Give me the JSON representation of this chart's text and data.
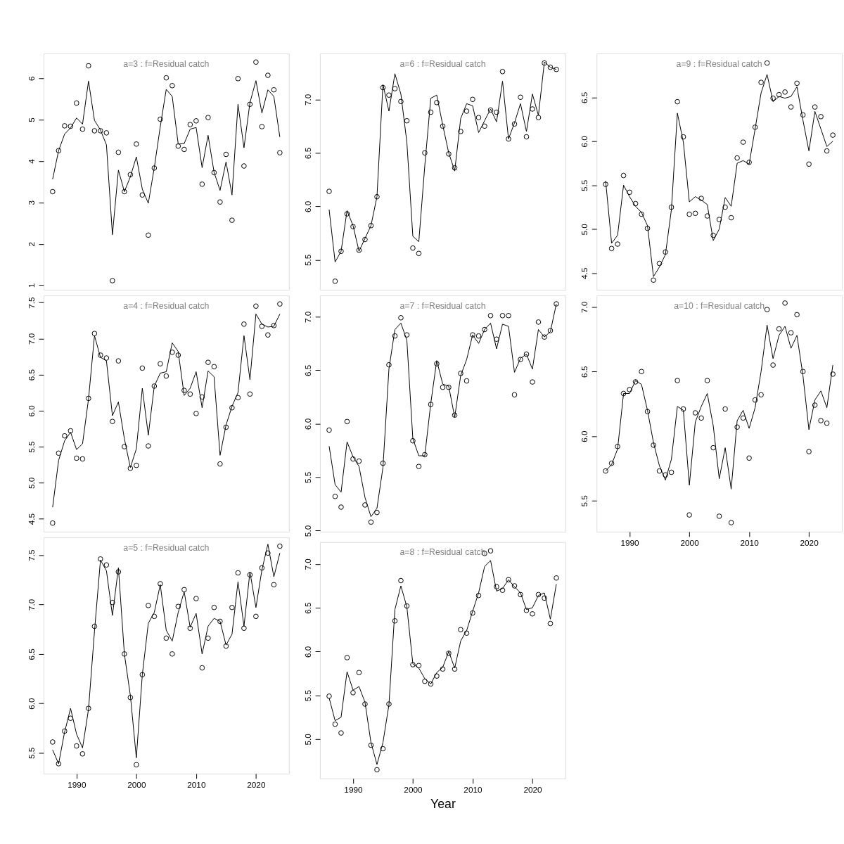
{
  "chart_data": [
    {
      "type": "line",
      "title": "a=3  :  f=Residual catch",
      "tick_labels": "y",
      "xlim": [
        1984.48,
        2025.52
      ],
      "xticks": [
        1990,
        2000,
        2010,
        2020
      ],
      "ylim": [
        0.89,
        6.6
      ],
      "yticks": [
        1,
        2,
        3,
        4,
        5,
        6
      ],
      "x": [
        1986,
        1987,
        1988,
        1989,
        1990,
        1991,
        1992,
        1993,
        1994,
        1995,
        1996,
        1997,
        1998,
        1999,
        2000,
        2001,
        2002,
        2003,
        2004,
        2005,
        2006,
        2007,
        2008,
        2009,
        2010,
        2011,
        2012,
        2013,
        2014,
        2015,
        2016,
        2017,
        2018,
        2019,
        2020,
        2021,
        2022,
        2023,
        2024
      ],
      "series": [
        {
          "type": "scatter",
          "marker": "circle",
          "color": "#000000",
          "values": [
            3.26,
            4.25,
            4.85,
            4.84,
            5.4,
            4.77,
            6.3,
            4.73,
            4.73,
            4.68,
            1.11,
            4.21,
            3.26,
            3.67,
            4.41,
            3.18,
            2.21,
            3.83,
            5.01,
            6.01,
            5.82,
            4.36,
            4.28,
            4.88,
            4.97,
            3.44,
            5.05,
            3.72,
            3.01,
            4.16,
            2.57,
            5.99,
            3.88,
            5.37,
            6.39,
            4.83,
            6.07,
            5.72,
            4.2
          ]
        },
        {
          "type": "line",
          "color": "#000000",
          "values": [
            3.56,
            4.25,
            4.65,
            4.8,
            5.04,
            4.89,
            5.93,
            4.98,
            4.75,
            4.39,
            2.22,
            3.78,
            3.26,
            3.62,
            4.1,
            3.32,
            2.98,
            3.84,
            4.83,
            5.73,
            5.56,
            4.41,
            4.42,
            4.77,
            4.81,
            3.84,
            4.62,
            3.73,
            3.29,
            3.98,
            3.18,
            5.37,
            4.32,
            5.41,
            5.94,
            5.16,
            5.72,
            5.56,
            4.58
          ]
        }
      ]
    },
    {
      "type": "line",
      "title": "a=4  :  f=Residual catch",
      "tick_labels": "y",
      "xlim": [
        1984.48,
        2025.52
      ],
      "xticks": [
        1990,
        2000,
        2010,
        2020
      ],
      "ylim": [
        4.32,
        7.6
      ],
      "yticks": [
        {
          "value": 4.5,
          "label": "4.5"
        },
        {
          "value": 5,
          "label": "5.0"
        },
        {
          "value": 5.5,
          "label": "5.5"
        },
        {
          "value": 6,
          "label": "6.0"
        },
        {
          "value": 6.5,
          "label": "6.5"
        },
        {
          "value": 7,
          "label": "7.0"
        },
        {
          "value": 7.5,
          "label": "7.5"
        }
      ],
      "x": [
        1986,
        1987,
        1988,
        1989,
        1990,
        1991,
        1992,
        1993,
        1994,
        1995,
        1996,
        1997,
        1998,
        1999,
        2000,
        2001,
        2002,
        2003,
        2004,
        2005,
        2006,
        2007,
        2008,
        2009,
        2010,
        2011,
        2012,
        2013,
        2014,
        2015,
        2016,
        2017,
        2018,
        2019,
        2020,
        2021,
        2022,
        2023,
        2024
      ],
      "series": [
        {
          "type": "scatter",
          "marker": "circle",
          "color": "#000000",
          "values": [
            4.44,
            5.41,
            5.65,
            5.72,
            5.34,
            5.33,
            6.17,
            7.07,
            6.77,
            6.73,
            5.85,
            6.69,
            5.5,
            5.2,
            5.24,
            6.59,
            5.51,
            6.34,
            6.65,
            6.48,
            6.81,
            6.77,
            6.28,
            6.23,
            5.96,
            6.19,
            6.67,
            6.61,
            5.26,
            5.77,
            6.04,
            6.18,
            7.2,
            6.23,
            7.45,
            7.17,
            7.05,
            7.18,
            7.48
          ]
        },
        {
          "type": "line",
          "color": "#000000",
          "values": [
            4.66,
            5.31,
            5.58,
            5.7,
            5.46,
            5.54,
            6.16,
            7.04,
            6.74,
            6.69,
            5.93,
            6.12,
            5.61,
            5.21,
            5.47,
            6.31,
            5.66,
            6.34,
            6.52,
            6.54,
            6.94,
            6.82,
            6.21,
            6.31,
            6.54,
            6.04,
            6.55,
            6.47,
            5.38,
            5.8,
            6.06,
            6.25,
            7.04,
            6.43,
            7.34,
            7.2,
            7.16,
            7.17,
            7.34
          ]
        }
      ]
    },
    {
      "type": "line",
      "title": "a=5  :  f=Residual catch",
      "xlim": [
        1984.48,
        2025.52
      ],
      "xticks": [
        1990,
        2000,
        2010,
        2020
      ],
      "ylim": [
        5.29,
        7.68
      ],
      "yticks": [
        {
          "value": 5.5,
          "label": "5.5"
        },
        {
          "value": 6,
          "label": "6.0"
        },
        {
          "value": 6.5,
          "label": "6.5"
        },
        {
          "value": 7,
          "label": "7.0"
        },
        {
          "value": 7.5,
          "label": "7.5"
        }
      ],
      "x": [
        1986,
        1987,
        1988,
        1989,
        1990,
        1991,
        1992,
        1993,
        1994,
        1995,
        1996,
        1997,
        1998,
        1999,
        2000,
        2001,
        2002,
        2003,
        2004,
        2005,
        2006,
        2007,
        2008,
        2009,
        2010,
        2011,
        2012,
        2013,
        2014,
        2015,
        2016,
        2017,
        2018,
        2019,
        2020,
        2021,
        2022,
        2023,
        2024
      ],
      "series": [
        {
          "type": "scatter",
          "marker": "circle",
          "color": "#000000",
          "values": [
            5.61,
            5.39,
            5.72,
            5.85,
            5.57,
            5.49,
            5.95,
            6.78,
            7.46,
            7.4,
            7.02,
            7.33,
            6.5,
            6.06,
            5.38,
            6.29,
            6.99,
            6.88,
            7.21,
            6.66,
            6.5,
            6.98,
            7.15,
            6.76,
            7.06,
            6.36,
            6.66,
            6.97,
            6.83,
            6.58,
            6.97,
            7.32,
            6.76,
            7.3,
            6.88,
            7.37,
            7.52,
            7.2,
            7.59
          ]
        },
        {
          "type": "line",
          "color": "#000000",
          "values": [
            5.53,
            5.39,
            5.71,
            5.95,
            5.69,
            5.55,
            5.94,
            6.73,
            7.45,
            7.34,
            6.89,
            7.37,
            6.5,
            6.08,
            5.45,
            6.29,
            6.81,
            6.92,
            7.2,
            6.74,
            6.63,
            6.92,
            7.13,
            6.77,
            6.91,
            6.5,
            6.78,
            6.86,
            6.83,
            6.59,
            6.7,
            7.23,
            6.78,
            7.33,
            6.97,
            7.35,
            7.61,
            7.28,
            7.52
          ]
        }
      ]
    },
    {
      "type": "line",
      "title": "a=6  :  f=Residual catch",
      "tick_labels": "y",
      "xlim": [
        1984.48,
        2025.52
      ],
      "xticks": [
        1990,
        2000,
        2010,
        2020
      ],
      "ylim": [
        5.22,
        7.43
      ],
      "yticks": [
        {
          "value": 5.5,
          "label": "5.5"
        },
        {
          "value": 6,
          "label": "6.0"
        },
        {
          "value": 6.5,
          "label": "6.5"
        },
        {
          "value": 7,
          "label": "7.0"
        }
      ],
      "x": [
        1986,
        1987,
        1988,
        1989,
        1990,
        1991,
        1992,
        1993,
        1994,
        1995,
        1996,
        1997,
        1998,
        1999,
        2000,
        2001,
        2002,
        2003,
        2004,
        2005,
        2006,
        2007,
        2008,
        2009,
        2010,
        2011,
        2012,
        2013,
        2014,
        2015,
        2016,
        2017,
        2018,
        2019,
        2020,
        2021,
        2022,
        2023,
        2024
      ],
      "series": [
        {
          "type": "scatter",
          "marker": "circle",
          "color": "#000000",
          "values": [
            6.14,
            5.3,
            5.58,
            5.93,
            5.81,
            5.59,
            5.69,
            5.82,
            6.09,
            7.11,
            7.04,
            7.1,
            6.98,
            6.8,
            5.61,
            5.56,
            6.5,
            6.88,
            6.97,
            6.75,
            6.49,
            6.36,
            6.7,
            6.89,
            7.0,
            6.83,
            6.75,
            6.9,
            6.88,
            7.26,
            6.63,
            6.77,
            7.02,
            6.65,
            6.91,
            6.83,
            7.34,
            7.3,
            7.28
          ]
        },
        {
          "type": "line",
          "color": "#000000",
          "values": [
            5.97,
            5.48,
            5.58,
            5.96,
            5.82,
            5.58,
            5.7,
            5.82,
            6.09,
            7.14,
            6.89,
            7.24,
            7.05,
            6.6,
            5.72,
            5.67,
            6.38,
            7.01,
            7.04,
            6.76,
            6.5,
            6.33,
            6.82,
            6.96,
            6.94,
            6.69,
            6.8,
            6.91,
            6.79,
            7.17,
            6.63,
            6.78,
            6.96,
            6.7,
            7.05,
            6.85,
            7.35,
            7.3,
            7.28
          ]
        }
      ]
    },
    {
      "type": "line",
      "title": "a=7  :  f=Residual catch",
      "tick_labels": "y",
      "xlim": [
        1984.48,
        2025.52
      ],
      "xticks": [
        1990,
        2000,
        2010,
        2020
      ],
      "ylim": [
        4.99,
        7.2
      ],
      "yticks": [
        {
          "value": 5,
          "label": "5.0"
        },
        {
          "value": 5.5,
          "label": "5.5"
        },
        {
          "value": 6,
          "label": "6.0"
        },
        {
          "value": 6.5,
          "label": "6.5"
        },
        {
          "value": 7,
          "label": "7.0"
        }
      ],
      "x": [
        1986,
        1987,
        1988,
        1989,
        1990,
        1991,
        1992,
        1993,
        1994,
        1995,
        1996,
        1997,
        1998,
        1999,
        2000,
        2001,
        2002,
        2003,
        2004,
        2005,
        2006,
        2007,
        2008,
        2009,
        2010,
        2011,
        2012,
        2013,
        2014,
        2015,
        2016,
        2017,
        2018,
        2019,
        2020,
        2021,
        2022,
        2023,
        2024
      ],
      "series": [
        {
          "type": "scatter",
          "marker": "circle",
          "color": "#000000",
          "values": [
            5.94,
            5.32,
            5.22,
            6.02,
            5.67,
            5.65,
            5.24,
            5.08,
            5.17,
            5.63,
            6.55,
            6.82,
            6.99,
            6.83,
            5.84,
            5.6,
            5.71,
            6.18,
            6.56,
            6.34,
            6.34,
            6.08,
            6.47,
            6.4,
            6.83,
            6.82,
            6.88,
            7.01,
            6.79,
            7.01,
            7.01,
            6.27,
            6.6,
            6.65,
            6.39,
            6.95,
            6.81,
            6.87,
            7.12
          ]
        },
        {
          "type": "line",
          "color": "#000000",
          "values": [
            5.79,
            5.43,
            5.36,
            5.83,
            5.69,
            5.6,
            5.31,
            5.13,
            5.21,
            5.59,
            6.51,
            6.88,
            6.94,
            6.78,
            5.86,
            5.7,
            5.7,
            6.19,
            6.59,
            6.37,
            6.35,
            6.06,
            6.45,
            6.6,
            6.83,
            6.75,
            6.88,
            6.94,
            6.7,
            6.93,
            6.91,
            6.48,
            6.61,
            6.65,
            6.51,
            6.88,
            6.81,
            6.86,
            7.12
          ]
        }
      ]
    },
    {
      "type": "line",
      "title": "a=8  :  f=Residual catch",
      "xlabel": "Year",
      "xlim": [
        1984.48,
        2025.52
      ],
      "xticks": [
        1990,
        2000,
        2010,
        2020
      ],
      "ylim": [
        4.55,
        7.25
      ],
      "yticks": [
        {
          "value": 5,
          "label": "5.0"
        },
        {
          "value": 5.5,
          "label": "5.5"
        },
        {
          "value": 6,
          "label": "6.0"
        },
        {
          "value": 6.5,
          "label": "6.5"
        },
        {
          "value": 7,
          "label": "7.0"
        }
      ],
      "x": [
        1986,
        1987,
        1988,
        1989,
        1990,
        1991,
        1992,
        1993,
        1994,
        1995,
        1996,
        1997,
        1998,
        1999,
        2000,
        2001,
        2002,
        2003,
        2004,
        2005,
        2006,
        2007,
        2008,
        2009,
        2010,
        2011,
        2012,
        2013,
        2014,
        2015,
        2016,
        2017,
        2018,
        2019,
        2020,
        2021,
        2022,
        2023,
        2024
      ],
      "series": [
        {
          "type": "scatter",
          "marker": "circle",
          "color": "#000000",
          "values": [
            5.49,
            5.17,
            5.07,
            5.93,
            5.53,
            5.76,
            5.4,
            4.93,
            4.65,
            4.89,
            5.4,
            6.35,
            6.81,
            6.52,
            5.85,
            5.84,
            5.66,
            5.63,
            5.72,
            5.8,
            5.98,
            5.8,
            6.25,
            6.21,
            6.44,
            6.64,
            7.12,
            7.15,
            6.74,
            6.7,
            6.82,
            6.75,
            6.65,
            6.47,
            6.43,
            6.65,
            6.61,
            6.32,
            6.84
          ]
        },
        {
          "type": "line",
          "color": "#000000",
          "values": [
            5.47,
            5.21,
            5.25,
            5.77,
            5.56,
            5.6,
            5.42,
            4.96,
            4.71,
            4.96,
            5.39,
            6.48,
            6.75,
            6.51,
            5.86,
            5.81,
            5.69,
            5.63,
            5.76,
            5.82,
            6.0,
            5.81,
            6.12,
            6.24,
            6.46,
            6.67,
            6.97,
            7.04,
            6.69,
            6.72,
            6.82,
            6.74,
            6.67,
            6.48,
            6.5,
            6.64,
            6.67,
            6.37,
            6.77
          ]
        }
      ]
    },
    {
      "type": "line",
      "title": "a=9  :  f=Residual catch",
      "tick_labels": "y",
      "xlim": [
        1984.48,
        2025.52
      ],
      "xticks": [
        1990,
        2000,
        2010,
        2020
      ],
      "ylim": [
        4.31,
        7.0
      ],
      "yticks": [
        {
          "value": 4.5,
          "label": "4.5"
        },
        {
          "value": 5,
          "label": "5.0"
        },
        {
          "value": 5.5,
          "label": "5.5"
        },
        {
          "value": 6,
          "label": "6.0"
        },
        {
          "value": 6.5,
          "label": "6.5"
        }
      ],
      "x": [
        1986,
        1987,
        1988,
        1989,
        1990,
        1991,
        1992,
        1993,
        1994,
        1995,
        1996,
        1997,
        1998,
        1999,
        2000,
        2001,
        2002,
        2003,
        2004,
        2005,
        2006,
        2007,
        2008,
        2009,
        2010,
        2011,
        2012,
        2013,
        2014,
        2015,
        2016,
        2017,
        2018,
        2019,
        2020,
        2021,
        2022,
        2023,
        2024
      ],
      "series": [
        {
          "type": "scatter",
          "marker": "circle",
          "color": "#000000",
          "values": [
            5.51,
            4.78,
            4.83,
            5.61,
            5.42,
            5.29,
            5.17,
            5.01,
            4.42,
            4.61,
            4.74,
            5.25,
            6.45,
            6.05,
            5.17,
            5.18,
            5.35,
            5.15,
            4.93,
            5.11,
            5.25,
            5.13,
            5.81,
            5.99,
            5.76,
            6.16,
            6.67,
            6.89,
            6.49,
            6.53,
            6.56,
            6.39,
            6.66,
            6.3,
            5.74,
            6.39,
            6.28,
            5.89,
            6.07
          ]
        },
        {
          "type": "line",
          "color": "#000000",
          "values": [
            5.55,
            4.84,
            4.93,
            5.5,
            5.37,
            5.26,
            5.19,
            5.04,
            4.46,
            4.57,
            4.71,
            5.22,
            6.32,
            5.99,
            5.31,
            5.37,
            5.33,
            5.28,
            4.87,
            5.0,
            5.36,
            5.26,
            5.75,
            5.78,
            5.74,
            6.14,
            6.55,
            6.76,
            6.45,
            6.51,
            6.49,
            6.51,
            6.62,
            6.24,
            5.89,
            6.34,
            6.14,
            5.94,
            6.0
          ]
        }
      ]
    },
    {
      "type": "line",
      "title": "a=10  :  f=Residual catch",
      "xlim": [
        1984.48,
        2025.52
      ],
      "xticks": [
        1990,
        2000,
        2010,
        2020
      ],
      "ylim": [
        5.26,
        7.09
      ],
      "yticks": [
        {
          "value": 5.5,
          "label": "5.5"
        },
        {
          "value": 6,
          "label": "6.0"
        },
        {
          "value": 6.5,
          "label": "6.5"
        },
        {
          "value": 7,
          "label": "7.0"
        }
      ],
      "x": [
        1986,
        1987,
        1988,
        1989,
        1990,
        1991,
        1992,
        1993,
        1994,
        1995,
        1996,
        1997,
        1998,
        1999,
        2000,
        2001,
        2002,
        2003,
        2004,
        2005,
        2006,
        2007,
        2008,
        2009,
        2010,
        2011,
        2012,
        2013,
        2014,
        2015,
        2016,
        2017,
        2018,
        2019,
        2020,
        2021,
        2022,
        2023,
        2024
      ],
      "series": [
        {
          "type": "scatter",
          "marker": "circle",
          "color": "#000000",
          "values": [
            5.73,
            5.79,
            5.92,
            6.33,
            6.36,
            6.42,
            6.5,
            6.19,
            5.93,
            5.73,
            5.7,
            5.72,
            6.43,
            6.21,
            5.39,
            6.18,
            6.14,
            6.43,
            5.91,
            5.38,
            6.21,
            5.33,
            6.07,
            6.14,
            5.83,
            6.28,
            6.32,
            6.98,
            6.55,
            6.83,
            7.03,
            6.8,
            6.94,
            6.5,
            5.88,
            6.24,
            6.12,
            6.1,
            6.48
          ]
        },
        {
          "type": "line",
          "color": "#000000",
          "values": [
            5.73,
            5.78,
            5.9,
            6.33,
            6.33,
            6.43,
            6.4,
            6.2,
            5.95,
            5.77,
            5.66,
            5.82,
            6.23,
            6.2,
            5.62,
            6.11,
            6.23,
            6.33,
            6.08,
            5.67,
            5.91,
            5.59,
            6.12,
            6.2,
            6.06,
            6.22,
            6.5,
            6.86,
            6.6,
            6.78,
            6.85,
            6.68,
            6.78,
            6.47,
            6.05,
            6.28,
            6.35,
            6.22,
            6.55
          ]
        }
      ]
    }
  ]
}
